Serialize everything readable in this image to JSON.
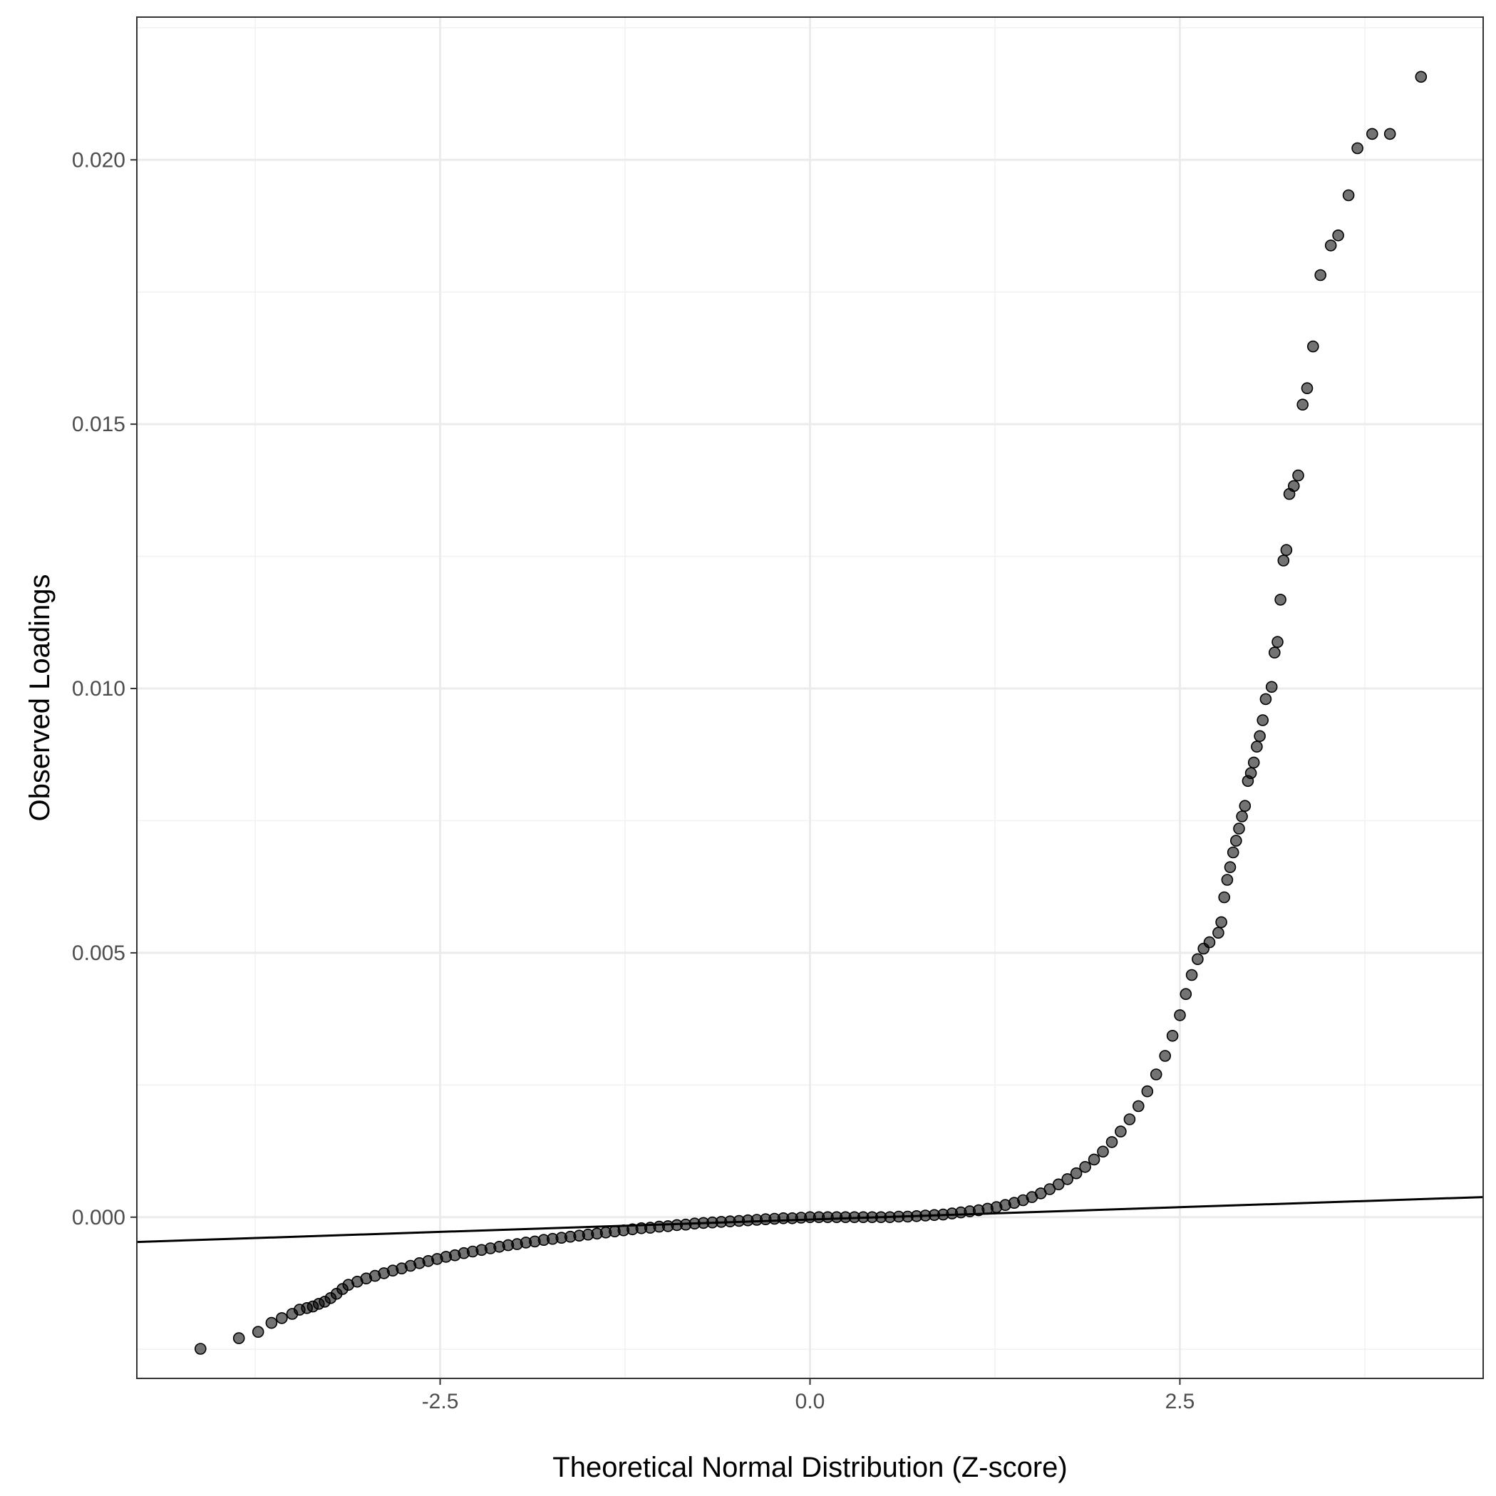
{
  "chart_data": {
    "type": "scatter",
    "title": "",
    "xlabel": "Theoretical Normal Distribution (Z-score)",
    "ylabel": "Observed Loadings",
    "xlim": [
      -4.55,
      4.55
    ],
    "ylim": [
      -0.00305,
      0.0227
    ],
    "x_ticks": [
      -2.5,
      0.0,
      2.5
    ],
    "x_tick_labels": [
      "-2.5",
      "0.0",
      "2.5"
    ],
    "y_ticks": [
      0.0,
      0.005,
      0.01,
      0.015,
      0.02
    ],
    "y_tick_labels": [
      "0.000",
      "0.005",
      "0.010",
      "0.015",
      "0.020"
    ],
    "x_minor_ticks": [
      -3.75,
      -1.25,
      1.25,
      3.75
    ],
    "y_minor_ticks": [
      -0.0025,
      0.0025,
      0.0075,
      0.0125,
      0.0175,
      0.0225
    ],
    "grid": true,
    "legend": "none",
    "reference_line": {
      "x": [
        -4.55,
        4.55
      ],
      "y": [
        -0.00047,
        0.00038
      ],
      "color": "#000000"
    },
    "point_color": "#000000",
    "points": [
      [
        -4.12,
        -0.00249
      ],
      [
        -3.86,
        -0.00229
      ],
      [
        -3.73,
        -0.00217
      ],
      [
        -3.64,
        -0.002
      ],
      [
        -3.57,
        -0.00191
      ],
      [
        -3.5,
        -0.00183
      ],
      [
        -3.45,
        -0.00175
      ],
      [
        -3.4,
        -0.00172
      ],
      [
        -3.36,
        -0.00169
      ],
      [
        -3.32,
        -0.00164
      ],
      [
        -3.28,
        -0.0016
      ],
      [
        -3.24,
        -0.00153
      ],
      [
        -3.2,
        -0.00145
      ],
      [
        -3.16,
        -0.00136
      ],
      [
        -3.12,
        -0.00128
      ],
      [
        -3.06,
        -0.00122
      ],
      [
        -3.0,
        -0.00116
      ],
      [
        -2.94,
        -0.00111
      ],
      [
        -2.88,
        -0.00106
      ],
      [
        -2.82,
        -0.00101
      ],
      [
        -2.76,
        -0.00097
      ],
      [
        -2.7,
        -0.00092
      ],
      [
        -2.64,
        -0.00087
      ],
      [
        -2.58,
        -0.00083
      ],
      [
        -2.52,
        -0.00079
      ],
      [
        -2.46,
        -0.00075
      ],
      [
        -2.4,
        -0.00072
      ],
      [
        -2.34,
        -0.00068
      ],
      [
        -2.28,
        -0.00065
      ],
      [
        -2.22,
        -0.00062
      ],
      [
        -2.16,
        -0.00059
      ],
      [
        -2.1,
        -0.00056
      ],
      [
        -2.04,
        -0.00053
      ],
      [
        -1.98,
        -0.00051
      ],
      [
        -1.92,
        -0.00048
      ],
      [
        -1.86,
        -0.00046
      ],
      [
        -1.8,
        -0.00043
      ],
      [
        -1.74,
        -0.00041
      ],
      [
        -1.68,
        -0.00039
      ],
      [
        -1.62,
        -0.00037
      ],
      [
        -1.56,
        -0.00035
      ],
      [
        -1.5,
        -0.00033
      ],
      [
        -1.44,
        -0.00031
      ],
      [
        -1.38,
        -0.00029
      ],
      [
        -1.32,
        -0.00027
      ],
      [
        -1.26,
        -0.00025
      ],
      [
        -1.2,
        -0.00023
      ],
      [
        -1.14,
        -0.00021
      ],
      [
        -1.08,
        -0.0002
      ],
      [
        -1.02,
        -0.00018
      ],
      [
        -0.96,
        -0.00017
      ],
      [
        -0.9,
        -0.00015
      ],
      [
        -0.84,
        -0.00014
      ],
      [
        -0.78,
        -0.00012
      ],
      [
        -0.72,
        -0.00011
      ],
      [
        -0.66,
        -0.0001
      ],
      [
        -0.6,
        -9e-05
      ],
      [
        -0.54,
        -8e-05
      ],
      [
        -0.48,
        -7e-05
      ],
      [
        -0.42,
        -6e-05
      ],
      [
        -0.36,
        -5e-05
      ],
      [
        -0.3,
        -4e-05
      ],
      [
        -0.24,
        -3e-05
      ],
      [
        -0.18,
        -2e-05
      ],
      [
        -0.12,
        -2e-05
      ],
      [
        -0.06,
        -1e-05
      ],
      [
        0.0,
        0.0
      ],
      [
        0.06,
        0.0
      ],
      [
        0.12,
        0.0
      ],
      [
        0.18,
        0.0
      ],
      [
        0.24,
        0.0
      ],
      [
        0.3,
        0.0
      ],
      [
        0.36,
        0.0
      ],
      [
        0.42,
        0.0
      ],
      [
        0.48,
        0.0
      ],
      [
        0.54,
        0.0
      ],
      [
        0.6,
        1e-05
      ],
      [
        0.66,
        1e-05
      ],
      [
        0.72,
        2e-05
      ],
      [
        0.78,
        3e-05
      ],
      [
        0.84,
        4e-05
      ],
      [
        0.9,
        5e-05
      ],
      [
        0.96,
        7e-05
      ],
      [
        1.02,
        9e-05
      ],
      [
        1.08,
        0.00011
      ],
      [
        1.14,
        0.00013
      ],
      [
        1.2,
        0.00016
      ],
      [
        1.26,
        0.00019
      ],
      [
        1.32,
        0.00023
      ],
      [
        1.38,
        0.00027
      ],
      [
        1.44,
        0.00032
      ],
      [
        1.5,
        0.00038
      ],
      [
        1.56,
        0.00045
      ],
      [
        1.62,
        0.00053
      ],
      [
        1.68,
        0.00062
      ],
      [
        1.74,
        0.00072
      ],
      [
        1.8,
        0.00083
      ],
      [
        1.86,
        0.00095
      ],
      [
        1.92,
        0.00109
      ],
      [
        1.98,
        0.00124
      ],
      [
        2.04,
        0.00142
      ],
      [
        2.1,
        0.00162
      ],
      [
        2.16,
        0.00185
      ],
      [
        2.22,
        0.0021
      ],
      [
        2.28,
        0.00238
      ],
      [
        2.34,
        0.0027
      ],
      [
        2.4,
        0.00305
      ],
      [
        2.45,
        0.00343
      ],
      [
        2.5,
        0.00382
      ],
      [
        2.54,
        0.00422
      ],
      [
        2.58,
        0.00458
      ],
      [
        2.62,
        0.00488
      ],
      [
        2.66,
        0.00508
      ],
      [
        2.7,
        0.0052
      ],
      [
        2.76,
        0.00538
      ],
      [
        2.78,
        0.00558
      ],
      [
        2.8,
        0.00605
      ],
      [
        2.82,
        0.00638
      ],
      [
        2.84,
        0.00662
      ],
      [
        2.86,
        0.0069
      ],
      [
        2.88,
        0.00712
      ],
      [
        2.9,
        0.00735
      ],
      [
        2.92,
        0.00758
      ],
      [
        2.94,
        0.00778
      ],
      [
        2.96,
        0.00825
      ],
      [
        2.98,
        0.0084
      ],
      [
        3.0,
        0.0086
      ],
      [
        3.02,
        0.0089
      ],
      [
        3.04,
        0.0091
      ],
      [
        3.06,
        0.0094
      ],
      [
        3.08,
        0.0098
      ],
      [
        3.12,
        0.01003
      ],
      [
        3.14,
        0.01068
      ],
      [
        3.16,
        0.01088
      ],
      [
        3.18,
        0.01168
      ],
      [
        3.2,
        0.01242
      ],
      [
        3.22,
        0.01262
      ],
      [
        3.24,
        0.01368
      ],
      [
        3.27,
        0.01383
      ],
      [
        3.3,
        0.01403
      ],
      [
        3.33,
        0.01537
      ],
      [
        3.36,
        0.01568
      ],
      [
        3.4,
        0.01647
      ],
      [
        3.45,
        0.01782
      ],
      [
        3.52,
        0.01838
      ],
      [
        3.57,
        0.01857
      ],
      [
        3.64,
        0.01933
      ],
      [
        3.7,
        0.02022
      ],
      [
        3.8,
        0.02049
      ],
      [
        3.92,
        0.02049
      ],
      [
        4.13,
        0.02157
      ]
    ]
  }
}
